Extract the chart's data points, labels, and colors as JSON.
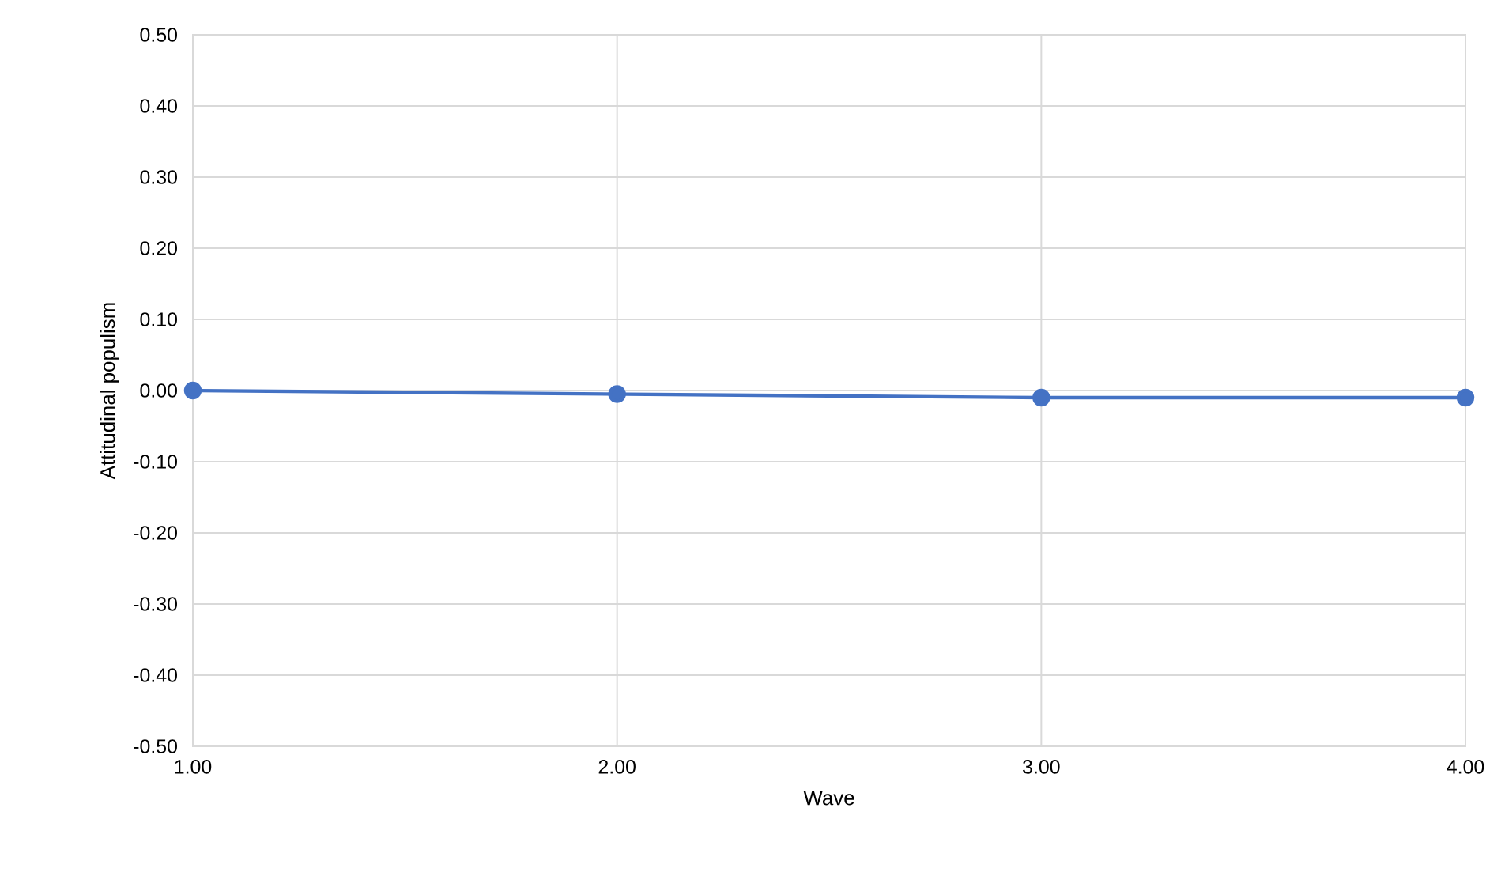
{
  "chart_data": {
    "type": "line",
    "xlabel": "Wave",
    "ylabel": "Attitudinal populism",
    "x": [
      1,
      2,
      3,
      4
    ],
    "series": [
      {
        "color": "#4472c4",
        "values": [
          0.0,
          -0.005,
          -0.01,
          -0.01
        ]
      }
    ],
    "xlim": [
      1,
      4
    ],
    "xticks": [
      {
        "value": 1,
        "label": "1.00"
      },
      {
        "value": 2,
        "label": "2.00"
      },
      {
        "value": 3,
        "label": "3.00"
      },
      {
        "value": 4,
        "label": "4.00"
      }
    ],
    "ylim": [
      -0.5,
      0.5
    ],
    "yticks": [
      {
        "value": -0.5,
        "label": "-0.50"
      },
      {
        "value": -0.4,
        "label": "-0.40"
      },
      {
        "value": -0.3,
        "label": "-0.30"
      },
      {
        "value": -0.2,
        "label": "-0.20"
      },
      {
        "value": -0.1,
        "label": "-0.10"
      },
      {
        "value": 0,
        "label": "0.00"
      },
      {
        "value": 0.1,
        "label": "0.10"
      },
      {
        "value": 0.2,
        "label": "0.20"
      },
      {
        "value": 0.3,
        "label": "0.30"
      },
      {
        "value": 0.4,
        "label": "0.40"
      },
      {
        "value": 0.5,
        "label": "0.50"
      }
    ],
    "grid": true,
    "marker": "circle",
    "line_style": "solid"
  }
}
